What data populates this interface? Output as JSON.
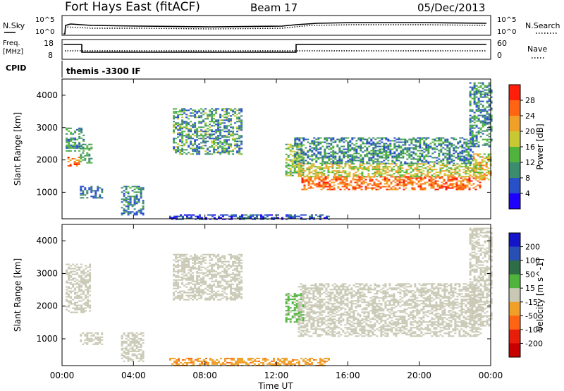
{
  "header": {
    "site": "Fort Hays East (fitACF)",
    "beam": "Beam 17",
    "date": "05/Dec/2013"
  },
  "top_panels": {
    "nsky_label": "N.Sky",
    "nsky_ticks": [
      "10^5",
      "10^0"
    ],
    "nsearch_label": "N.Search",
    "nsearch_ticks": [
      "10^5",
      "10^0"
    ],
    "freq_label": "Freq.",
    "freq_unit": "[MHz]",
    "freq_ticks": [
      "18",
      "8"
    ],
    "nave_label": "Nave",
    "nave_ticks": [
      "60",
      "0"
    ],
    "cpid_label": "CPID",
    "cpid_value": "themis -3300 IF"
  },
  "x_axis": {
    "label": "Time UT",
    "ticks": [
      "00:00",
      "04:00",
      "08:00",
      "12:00",
      "16:00",
      "20:00",
      "00:00"
    ]
  },
  "colors": {
    "power": [
      "#1e00ff",
      "#2850c8",
      "#3c8c6e",
      "#50b43c",
      "#c8c832",
      "#f0a028",
      "#ff6414",
      "#ff1e0a"
    ],
    "velocity": [
      "#1414c8",
      "#2850b4",
      "#2e6e46",
      "#50b43c",
      "#c8c8b4",
      "#f0a028",
      "#ff6414",
      "#e61e0a",
      "#c80000"
    ]
  },
  "chart_data": [
    {
      "type": "heatmap",
      "title": "Power",
      "ylabel": "Slant Range [km]",
      "xlabel": "",
      "xlim": [
        0,
        24
      ],
      "ylim": [
        180,
        4500
      ],
      "yticks": [
        "1000",
        "2000",
        "3000",
        "4000"
      ],
      "colorbar": {
        "label": "Power [dB]",
        "ticks": [
          "28",
          "24",
          "20",
          "16",
          "12",
          "8",
          "4"
        ],
        "range": [
          0,
          32
        ]
      },
      "regions": [
        {
          "t": [
            0.3,
            0.9
          ],
          "r": [
            1800,
            2100
          ],
          "v": [
            20,
            30
          ]
        },
        {
          "t": [
            0.2,
            1.2
          ],
          "r": [
            2300,
            3000
          ],
          "v": [
            6,
            16
          ]
        },
        {
          "t": [
            1.0,
            1.6
          ],
          "r": [
            1900,
            2500
          ],
          "v": [
            8,
            16
          ]
        },
        {
          "t": [
            1.0,
            2.2
          ],
          "r": [
            850,
            1200
          ],
          "v": [
            4,
            12
          ]
        },
        {
          "t": [
            3.3,
            4.6
          ],
          "r": [
            300,
            1200
          ],
          "v": [
            4,
            14
          ]
        },
        {
          "t": [
            6.2,
            10.1
          ],
          "r": [
            2200,
            3600
          ],
          "v": [
            4,
            18
          ]
        },
        {
          "t": [
            12.5,
            13.5
          ],
          "r": [
            1500,
            2500
          ],
          "v": [
            8,
            20
          ]
        },
        {
          "t": [
            13.4,
            23.4
          ],
          "r": [
            1100,
            1500
          ],
          "v": [
            20,
            30
          ]
        },
        {
          "t": [
            13.2,
            23.5
          ],
          "r": [
            1500,
            1900
          ],
          "v": [
            12,
            24
          ]
        },
        {
          "t": [
            13.0,
            23.0
          ],
          "r": [
            1900,
            2700
          ],
          "v": [
            4,
            16
          ]
        },
        {
          "t": [
            23.0,
            24.0
          ],
          "r": [
            1400,
            2200
          ],
          "v": [
            14,
            26
          ]
        },
        {
          "t": [
            22.8,
            24.0
          ],
          "r": [
            2400,
            4400
          ],
          "v": [
            4,
            16
          ]
        },
        {
          "t": [
            6.0,
            15.0
          ],
          "r": [
            180,
            320
          ],
          "v": [
            2,
            10
          ]
        }
      ]
    },
    {
      "type": "heatmap",
      "title": "Velocity",
      "ylabel": "Slant Range [km]",
      "xlabel": "Time UT",
      "xlim": [
        0,
        24
      ],
      "ylim": [
        180,
        4500
      ],
      "yticks": [
        "1000",
        "2000",
        "3000",
        "4000"
      ],
      "colorbar": {
        "label": "Velocity [m s^-1]",
        "ticks": [
          "200",
          "100",
          "50",
          "15",
          "-15",
          "-50",
          "-100",
          "-200"
        ],
        "range": [
          -250,
          250
        ]
      },
      "regions": [
        {
          "t": [
            0.2,
            1.6
          ],
          "r": [
            1800,
            3300
          ],
          "v": [
            -15,
            15
          ]
        },
        {
          "t": [
            1.0,
            2.2
          ],
          "r": [
            850,
            1200
          ],
          "v": [
            -15,
            15
          ]
        },
        {
          "t": [
            3.3,
            4.6
          ],
          "r": [
            300,
            1200
          ],
          "v": [
            -15,
            15
          ]
        },
        {
          "t": [
            6.2,
            10.1
          ],
          "r": [
            2200,
            3600
          ],
          "v": [
            -15,
            15
          ]
        },
        {
          "t": [
            12.5,
            13.5
          ],
          "r": [
            1500,
            2400
          ],
          "v": [
            20,
            60
          ]
        },
        {
          "t": [
            13.2,
            23.5
          ],
          "r": [
            1100,
            2700
          ],
          "v": [
            -15,
            15
          ]
        },
        {
          "t": [
            22.8,
            24.0
          ],
          "r": [
            1400,
            4400
          ],
          "v": [
            -15,
            15
          ]
        },
        {
          "t": [
            6.0,
            15.0
          ],
          "r": [
            180,
            420
          ],
          "v": [
            -90,
            -30
          ]
        }
      ]
    }
  ]
}
